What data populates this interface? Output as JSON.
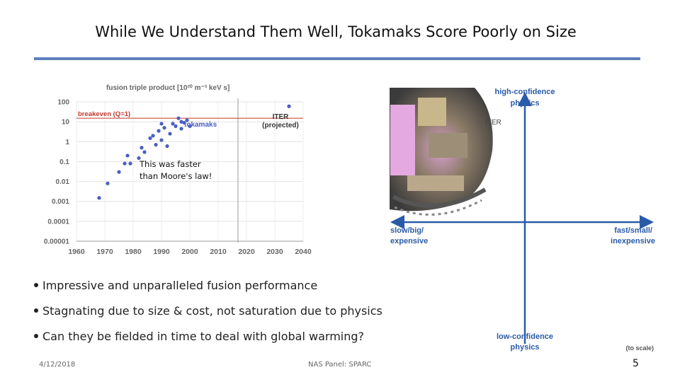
{
  "slide": {
    "title": "While We Understand Them Well, Tokamaks Score Poorly on Size",
    "date": "4/12/2018",
    "footer_center": "NAS Panel: SPARC",
    "page_number": "5",
    "bullets": [
      "Impressive and unparalleled fusion performance",
      "Stagnating due to size & cost, not saturation due to physics",
      "Can they be fielded in time to deal with global warming?"
    ]
  },
  "chart_data": {
    "type": "scatter",
    "title": "fusion triple product [10²⁰ m⁻³ keV s]",
    "x_ticks": [
      "1960",
      "1970",
      "1980",
      "1990",
      "2000",
      "2010",
      "2020",
      "2030",
      "2040"
    ],
    "y_ticks": [
      "100",
      "10",
      "1",
      "0.1",
      "0.01",
      "0.001",
      "0.0001",
      "0.00001"
    ],
    "xlim": [
      1960,
      2040
    ],
    "ylim_log10": [
      -5,
      2
    ],
    "scale_y": "log",
    "grid": true,
    "series": [
      {
        "name": "tokamaks",
        "color": "#4a5fc1",
        "points": [
          [
            1968,
            0.0015
          ],
          [
            1971,
            0.008
          ],
          [
            1975,
            0.03
          ],
          [
            1977,
            0.08
          ],
          [
            1978,
            0.2
          ],
          [
            1979,
            0.08
          ],
          [
            1982,
            0.15
          ],
          [
            1983,
            0.5
          ],
          [
            1984,
            0.3
          ],
          [
            1986,
            1.5
          ],
          [
            1987,
            2
          ],
          [
            1988,
            0.7
          ],
          [
            1989,
            3.5
          ],
          [
            1990,
            1.2
          ],
          [
            1990,
            8
          ],
          [
            1991,
            5
          ],
          [
            1992,
            0.6
          ],
          [
            1993,
            2.5
          ],
          [
            1994,
            8
          ],
          [
            1995,
            6
          ],
          [
            1996,
            15
          ],
          [
            1997,
            10
          ],
          [
            1997,
            4.5
          ],
          [
            1998,
            9
          ],
          [
            1999,
            12
          ],
          [
            2000,
            6
          ]
        ]
      },
      {
        "name": "ITER (projected)",
        "color": "#4a5fc1",
        "points": [
          [
            2035,
            60
          ]
        ]
      }
    ],
    "reference_lines": [
      {
        "label": "breakeven (Q=1)",
        "y": 15,
        "color": "#c0392b"
      }
    ],
    "vertical_marker": {
      "x": 2017
    },
    "annotations": {
      "tokamaks": "tokamaks",
      "iter_line1": "ITER",
      "iter_line2": "(projected)",
      "callout_line1": "This was faster",
      "callout_line2": "than Moore's law!"
    }
  },
  "quadrant": {
    "axis_color": "#2a5ba8",
    "top_label_1": "high-confidence",
    "top_label_2": "physics",
    "bottom_label_1": "low-confidence",
    "bottom_label_2": "physics",
    "left_label_1": "slow/big/",
    "left_label_2": "expensive",
    "right_label_1": "fast/small/",
    "right_label_2": "inexpensive",
    "iter_label": "ITER",
    "scale_note": "(to scale)",
    "image_icon": "iter-tokamak-cutaway-icon"
  }
}
